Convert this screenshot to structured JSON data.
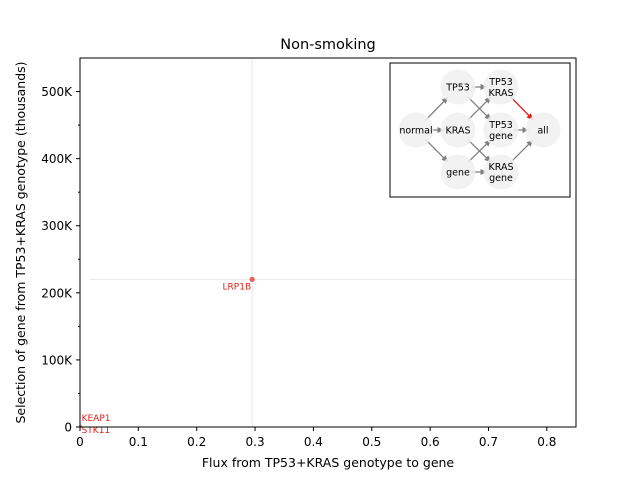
{
  "chart_data": {
    "type": "scatter",
    "title": "Non-smoking",
    "xlabel": "Flux from TP53+KRAS genotype to gene",
    "ylabel": "Selection of gene from TP53+KRAS genotype (thousands)",
    "xlim": [
      0,
      0.85
    ],
    "ylim": [
      0,
      550000
    ],
    "xticks": [
      {
        "value": 0.0,
        "label": "0"
      },
      {
        "value": 0.1,
        "label": "0.1"
      },
      {
        "value": 0.2,
        "label": "0.2"
      },
      {
        "value": 0.3,
        "label": "0.3"
      },
      {
        "value": 0.4,
        "label": "0.4"
      },
      {
        "value": 0.5,
        "label": "0.5"
      },
      {
        "value": 0.6,
        "label": "0.6"
      },
      {
        "value": 0.7,
        "label": "0.7"
      },
      {
        "value": 0.8,
        "label": "0.8"
      }
    ],
    "yticks": [
      {
        "value": 0,
        "label": "0"
      },
      {
        "value": 100000,
        "label": "100K"
      },
      {
        "value": 200000,
        "label": "200K"
      },
      {
        "value": 300000,
        "label": "300K"
      },
      {
        "value": 400000,
        "label": "400K"
      },
      {
        "value": 500000,
        "label": "500K"
      }
    ],
    "minor_yticks": [
      50000,
      150000,
      250000,
      350000,
      450000
    ],
    "points": [
      {
        "label": "LRP1B",
        "x": 0.295,
        "y": 220000,
        "highlight": true
      },
      {
        "label": "KEAP1",
        "x": 0.001,
        "y": 1500,
        "highlight": false
      },
      {
        "label": "STK11",
        "x": 0.001,
        "y": 500,
        "highlight": false
      }
    ],
    "colors": {
      "highlight": "#e0201c",
      "axis": "#000000",
      "arrow": "#808080",
      "node_fill": "#f0f0f0",
      "guide": "#e8e8e8"
    },
    "inset_diagram": {
      "nodes": [
        {
          "id": "normal",
          "lines": [
            "normal"
          ]
        },
        {
          "id": "tp53",
          "lines": [
            "TP53"
          ]
        },
        {
          "id": "kras",
          "lines": [
            "KRAS"
          ]
        },
        {
          "id": "gene",
          "lines": [
            "gene"
          ]
        },
        {
          "id": "tp53kras",
          "lines": [
            "TP53",
            "KRAS"
          ]
        },
        {
          "id": "tp53gene",
          "lines": [
            "TP53",
            "gene"
          ]
        },
        {
          "id": "krasgene",
          "lines": [
            "KRAS",
            "gene"
          ]
        },
        {
          "id": "all",
          "lines": [
            "all"
          ]
        }
      ],
      "edges": [
        {
          "from": "normal",
          "to": "tp53",
          "highlight": false
        },
        {
          "from": "normal",
          "to": "kras",
          "highlight": false
        },
        {
          "from": "normal",
          "to": "gene",
          "highlight": false
        },
        {
          "from": "tp53",
          "to": "tp53kras",
          "highlight": false
        },
        {
          "from": "tp53",
          "to": "tp53gene",
          "highlight": false
        },
        {
          "from": "kras",
          "to": "tp53kras",
          "highlight": false
        },
        {
          "from": "kras",
          "to": "krasgene",
          "highlight": false
        },
        {
          "from": "gene",
          "to": "tp53gene",
          "highlight": false
        },
        {
          "from": "gene",
          "to": "krasgene",
          "highlight": false
        },
        {
          "from": "tp53kras",
          "to": "all",
          "highlight": true
        },
        {
          "from": "tp53gene",
          "to": "all",
          "highlight": false
        },
        {
          "from": "krasgene",
          "to": "all",
          "highlight": false
        }
      ]
    }
  }
}
